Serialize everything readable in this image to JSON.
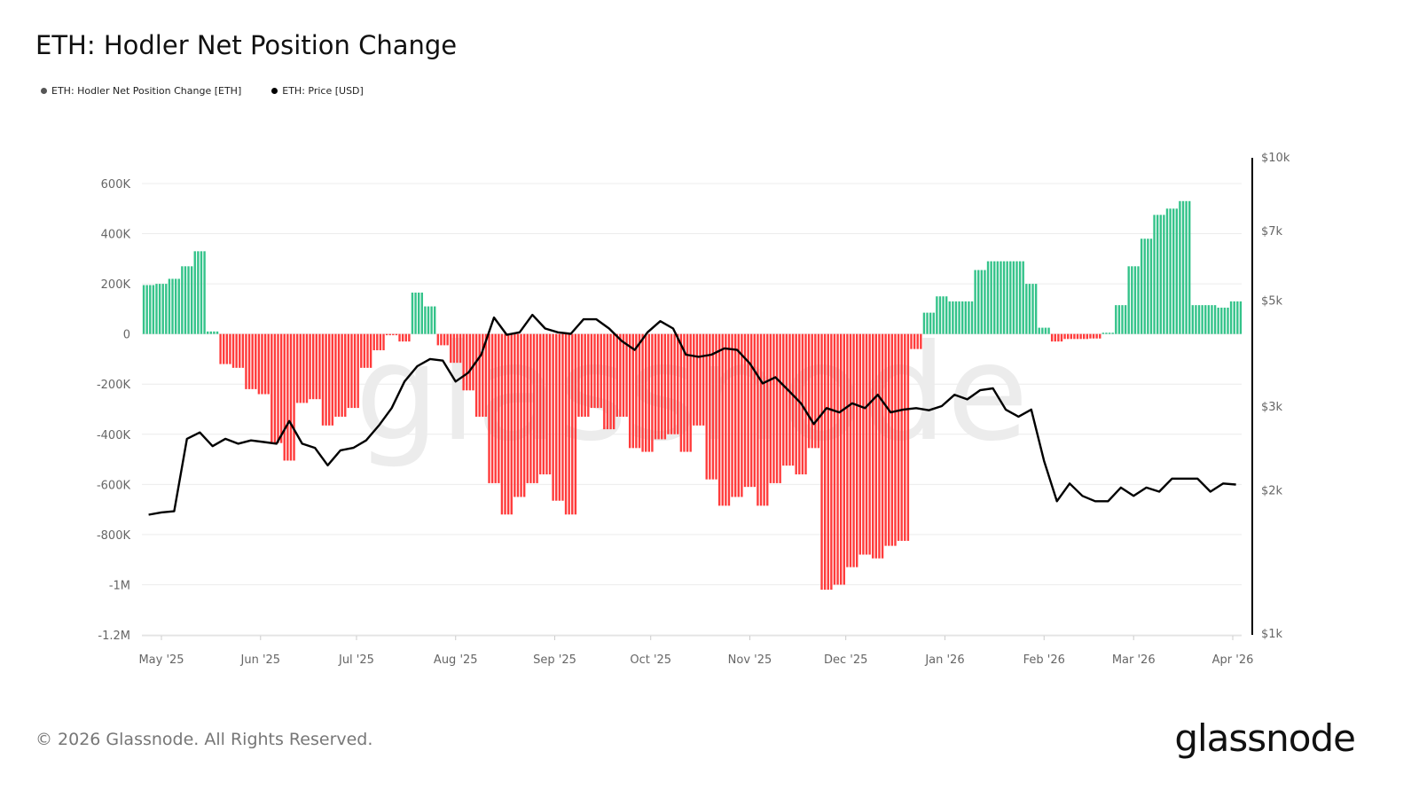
{
  "title": "ETH: Hodler Net Position Change",
  "footer": "© 2026 Glassnode. All Rights Reserved.",
  "logo": "glassnode",
  "watermark": "glassnode",
  "chart_data": {
    "type": "bar+line",
    "title": "ETH: Hodler Net Position Change",
    "legend": [
      "ETH: Hodler Net Position Change [ETH]",
      "ETH: Price [USD]"
    ],
    "legend_placement": "top-left",
    "colors": {
      "positive": "#34c38a",
      "negative": "#ff3b3b",
      "price": "#000000",
      "legend_dot_1": "#555555",
      "legend_dot_2": "#000000"
    },
    "grid": true,
    "left_axis": {
      "ticks": [
        "600K",
        "400K",
        "200K",
        "0",
        "-200K",
        "-400K",
        "-600K",
        "-800K",
        "-1M",
        "-1.2M"
      ],
      "tick_values": [
        600000,
        400000,
        200000,
        0,
        -200000,
        -400000,
        -600000,
        -800000,
        -1000000,
        -1200000
      ],
      "ylim": [
        -1200000,
        600000
      ]
    },
    "right_axis": {
      "scale": "log",
      "ticks": [
        "$10k",
        "$7k",
        "$5k",
        "$3k",
        "$2k",
        "$1k"
      ],
      "tick_values": [
        10000,
        7000,
        5000,
        3000,
        2000,
        1000
      ],
      "ylim": [
        1000,
        10000
      ]
    },
    "x_ticks": [
      "May '25",
      "Jun '25",
      "Jul '25",
      "Aug '25",
      "Sep '25",
      "Oct '25",
      "Nov '25",
      "Dec '25",
      "Jan '26",
      "Feb '26",
      "Mar '26",
      "Apr '26"
    ],
    "x_tick_dates": [
      "2025-05-01",
      "2025-06-01",
      "2025-07-01",
      "2025-08-01",
      "2025-09-01",
      "2025-10-01",
      "2025-11-01",
      "2025-12-01",
      "2026-01-01",
      "2026-02-01",
      "2026-03-01",
      "2026-04-01"
    ],
    "x": [
      "2025-04-27",
      "2025-05-01",
      "2025-05-05",
      "2025-05-09",
      "2025-05-13",
      "2025-05-17",
      "2025-05-21",
      "2025-05-25",
      "2025-05-29",
      "2025-06-02",
      "2025-06-06",
      "2025-06-10",
      "2025-06-14",
      "2025-06-18",
      "2025-06-22",
      "2025-06-26",
      "2025-06-30",
      "2025-07-04",
      "2025-07-08",
      "2025-07-12",
      "2025-07-16",
      "2025-07-20",
      "2025-07-24",
      "2025-07-28",
      "2025-08-01",
      "2025-08-05",
      "2025-08-09",
      "2025-08-13",
      "2025-08-17",
      "2025-08-21",
      "2025-08-25",
      "2025-08-29",
      "2025-09-02",
      "2025-09-06",
      "2025-09-10",
      "2025-09-14",
      "2025-09-18",
      "2025-09-22",
      "2025-09-26",
      "2025-09-30",
      "2025-10-04",
      "2025-10-08",
      "2025-10-12",
      "2025-10-16",
      "2025-10-20",
      "2025-10-24",
      "2025-10-28",
      "2025-11-01",
      "2025-11-05",
      "2025-11-09",
      "2025-11-13",
      "2025-11-17",
      "2025-11-21",
      "2025-11-25",
      "2025-11-29",
      "2025-12-03",
      "2025-12-07",
      "2025-12-11",
      "2025-12-15",
      "2025-12-19",
      "2025-12-23",
      "2025-12-27",
      "2025-12-31",
      "2026-01-04",
      "2026-01-08",
      "2026-01-12",
      "2026-01-16",
      "2026-01-20",
      "2026-01-24",
      "2026-01-28",
      "2026-02-01",
      "2026-02-05",
      "2026-02-09",
      "2026-02-13",
      "2026-02-17",
      "2026-02-21",
      "2026-02-25",
      "2026-03-01",
      "2026-03-05",
      "2026-03-09",
      "2026-03-13",
      "2026-03-17",
      "2026-03-21",
      "2026-03-25",
      "2026-03-29",
      "2026-04-02"
    ],
    "series": [
      {
        "name": "ETH: Hodler Net Position Change [ETH]",
        "axis": "left",
        "type": "bar",
        "values": [
          195000,
          200000,
          220000,
          270000,
          330000,
          10000,
          -120000,
          -135000,
          -220000,
          -240000,
          -435000,
          -505000,
          -275000,
          -260000,
          -365000,
          -330000,
          -295000,
          -135000,
          -65000,
          -5000,
          -30000,
          165000,
          110000,
          -45000,
          -115000,
          -225000,
          -330000,
          -595000,
          -720000,
          -650000,
          -595000,
          -560000,
          -665000,
          -720000,
          -330000,
          -295000,
          -380000,
          -330000,
          -455000,
          -470000,
          -420000,
          -400000,
          -470000,
          -365000,
          -580000,
          -685000,
          -650000,
          -610000,
          -685000,
          -595000,
          -525000,
          -560000,
          -455000,
          -1020000,
          -1000000,
          -930000,
          -880000,
          -895000,
          -845000,
          -825000,
          -60000,
          85000,
          150000,
          130000,
          130000,
          255000,
          290000,
          290000,
          290000,
          200000,
          25000,
          -30000,
          -20000,
          -20000,
          -18000,
          5000,
          115000,
          270000,
          380000,
          475000,
          500000,
          530000,
          115000,
          115000,
          105000,
          130000
        ]
      },
      {
        "name": "ETH: Price [USD]",
        "axis": "right",
        "type": "line",
        "values": [
          1780,
          1800,
          1810,
          2570,
          2650,
          2480,
          2570,
          2510,
          2550,
          2530,
          2510,
          2800,
          2510,
          2460,
          2260,
          2430,
          2460,
          2550,
          2740,
          2980,
          3390,
          3650,
          3780,
          3750,
          3390,
          3540,
          3860,
          4620,
          4250,
          4300,
          4680,
          4380,
          4300,
          4270,
          4580,
          4580,
          4380,
          4120,
          3950,
          4300,
          4540,
          4380,
          3860,
          3820,
          3860,
          3980,
          3950,
          3700,
          3360,
          3460,
          3250,
          3050,
          2760,
          2980,
          2920,
          3050,
          2980,
          3180,
          2920,
          2960,
          2980,
          2950,
          3010,
          3180,
          3110,
          3250,
          3280,
          2960,
          2860,
          2960,
          2310,
          1900,
          2070,
          1950,
          1900,
          1900,
          2030,
          1950,
          2030,
          1990,
          2120,
          2120,
          2120,
          1990,
          2070,
          2060
        ]
      }
    ]
  }
}
